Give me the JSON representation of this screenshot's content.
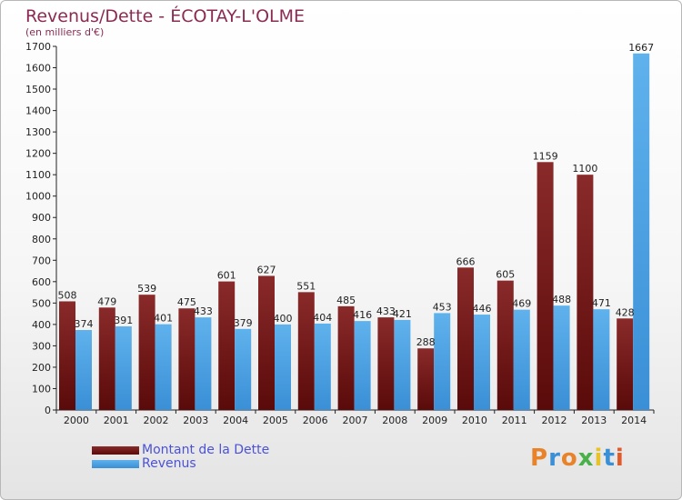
{
  "chart_data": {
    "type": "bar",
    "title": "Revenus/Dette - ÉCOTAY-L'OLME",
    "subtitle": "(en milliers d'€)",
    "categories": [
      "2000",
      "2001",
      "2002",
      "2003",
      "2004",
      "2005",
      "2006",
      "2007",
      "2008",
      "2009",
      "2010",
      "2011",
      "2012",
      "2013",
      "2014"
    ],
    "series": [
      {
        "name": "Montant de la Dette",
        "color": "#7a1a1a",
        "values": [
          508,
          479,
          539,
          475,
          601,
          627,
          551,
          485,
          433,
          288,
          666,
          605,
          1159,
          1100,
          428
        ]
      },
      {
        "name": "Revenus",
        "color": "#4a9fe0",
        "values": [
          374,
          391,
          401,
          433,
          379,
          400,
          404,
          416,
          421,
          453,
          446,
          469,
          488,
          471,
          1667
        ]
      }
    ],
    "ylim": [
      0,
      1700
    ],
    "yticks": [
      0,
      100,
      200,
      300,
      400,
      500,
      600,
      700,
      800,
      900,
      1000,
      1100,
      1200,
      1300,
      1400,
      1500,
      1600,
      1700
    ],
    "grid": false,
    "legend": "bottom-left"
  },
  "brand": {
    "text": "Proxiti",
    "colors": [
      "#e8832a",
      "#3a8fd6",
      "#e8832a",
      "#4ab04a",
      "#e8c22a",
      "#3a8fd6",
      "#e05a2a"
    ]
  }
}
